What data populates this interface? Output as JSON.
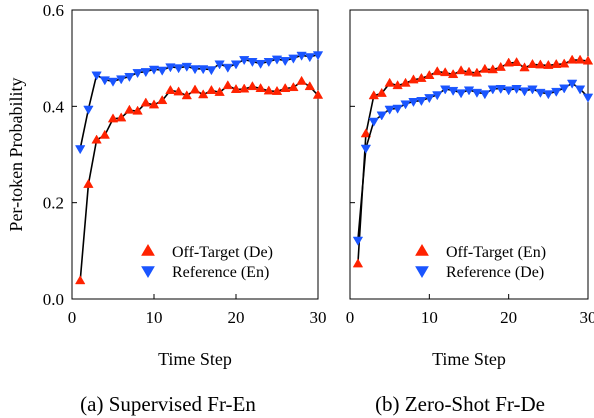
{
  "chart_data": [
    {
      "type": "line",
      "title": "",
      "caption": "(a) Supervised Fr-En",
      "xlabel": "Time Step",
      "ylabel": "Per-token Probability",
      "xlim": [
        0,
        30
      ],
      "ylim": [
        0,
        0.6
      ],
      "xticks": [
        0,
        10,
        20,
        30
      ],
      "yticks": [
        0.0,
        0.2,
        0.4,
        0.6
      ],
      "ytick_labels": [
        "0.0",
        "0.2",
        "0.4",
        "0.6"
      ],
      "grid": false,
      "legend_position": "bottom-right",
      "series": [
        {
          "name": "Off-Target (De)",
          "color": "#ff2200",
          "marker": "triangle-up",
          "x": [
            1,
            2,
            3,
            4,
            5,
            6,
            7,
            8,
            9,
            10,
            11,
            12,
            13,
            14,
            15,
            16,
            17,
            18,
            19,
            20,
            21,
            22,
            23,
            24,
            25,
            26,
            27,
            28,
            29,
            30
          ],
          "y": [
            0.038,
            0.238,
            0.33,
            0.34,
            0.374,
            0.376,
            0.392,
            0.39,
            0.407,
            0.403,
            0.412,
            0.433,
            0.43,
            0.422,
            0.434,
            0.424,
            0.433,
            0.429,
            0.443,
            0.435,
            0.436,
            0.441,
            0.437,
            0.432,
            0.431,
            0.437,
            0.439,
            0.452,
            0.441,
            0.423
          ]
        },
        {
          "name": "Reference (En)",
          "color": "#1a55ff",
          "marker": "triangle-down",
          "x": [
            1,
            2,
            3,
            4,
            5,
            6,
            7,
            8,
            9,
            10,
            11,
            12,
            13,
            14,
            15,
            16,
            17,
            18,
            19,
            20,
            21,
            22,
            23,
            24,
            25,
            26,
            27,
            28,
            29,
            30
          ],
          "y": [
            0.312,
            0.394,
            0.465,
            0.455,
            0.452,
            0.457,
            0.462,
            0.47,
            0.472,
            0.477,
            0.475,
            0.482,
            0.48,
            0.483,
            0.478,
            0.478,
            0.476,
            0.488,
            0.481,
            0.488,
            0.497,
            0.493,
            0.489,
            0.493,
            0.498,
            0.495,
            0.5,
            0.506,
            0.503,
            0.507
          ]
        }
      ]
    },
    {
      "type": "line",
      "title": "",
      "caption": "(b) Zero-Shot Fr-De",
      "xlabel": "Time Step",
      "ylabel": "",
      "xlim": [
        0,
        30
      ],
      "ylim": [
        0,
        0.6
      ],
      "xticks": [
        0,
        10,
        20,
        30
      ],
      "yticks": [
        0.0,
        0.2,
        0.4,
        0.6
      ],
      "grid": false,
      "legend_position": "bottom-right",
      "series": [
        {
          "name": "Off-Target (En)",
          "color": "#ff2200",
          "marker": "triangle-up",
          "x": [
            1,
            2,
            3,
            4,
            5,
            6,
            7,
            8,
            9,
            10,
            11,
            12,
            13,
            14,
            15,
            16,
            17,
            18,
            19,
            20,
            21,
            22,
            23,
            24,
            25,
            26,
            27,
            28,
            29,
            30
          ],
          "y": [
            0.073,
            0.343,
            0.422,
            0.427,
            0.448,
            0.443,
            0.448,
            0.455,
            0.458,
            0.464,
            0.472,
            0.47,
            0.466,
            0.474,
            0.471,
            0.469,
            0.477,
            0.476,
            0.481,
            0.49,
            0.491,
            0.48,
            0.487,
            0.486,
            0.485,
            0.487,
            0.488,
            0.496,
            0.496,
            0.494
          ]
        },
        {
          "name": "Reference (De)",
          "color": "#1a55ff",
          "marker": "triangle-down",
          "x": [
            1,
            2,
            3,
            4,
            5,
            6,
            7,
            8,
            9,
            10,
            11,
            12,
            13,
            14,
            15,
            16,
            17,
            18,
            19,
            20,
            21,
            22,
            23,
            24,
            25,
            26,
            27,
            28,
            29,
            30
          ],
          "y": [
            0.122,
            0.313,
            0.369,
            0.382,
            0.394,
            0.396,
            0.405,
            0.41,
            0.412,
            0.418,
            0.424,
            0.436,
            0.433,
            0.428,
            0.434,
            0.429,
            0.426,
            0.436,
            0.437,
            0.434,
            0.437,
            0.432,
            0.436,
            0.429,
            0.426,
            0.431,
            0.438,
            0.448,
            0.436,
            0.419
          ]
        }
      ]
    }
  ]
}
